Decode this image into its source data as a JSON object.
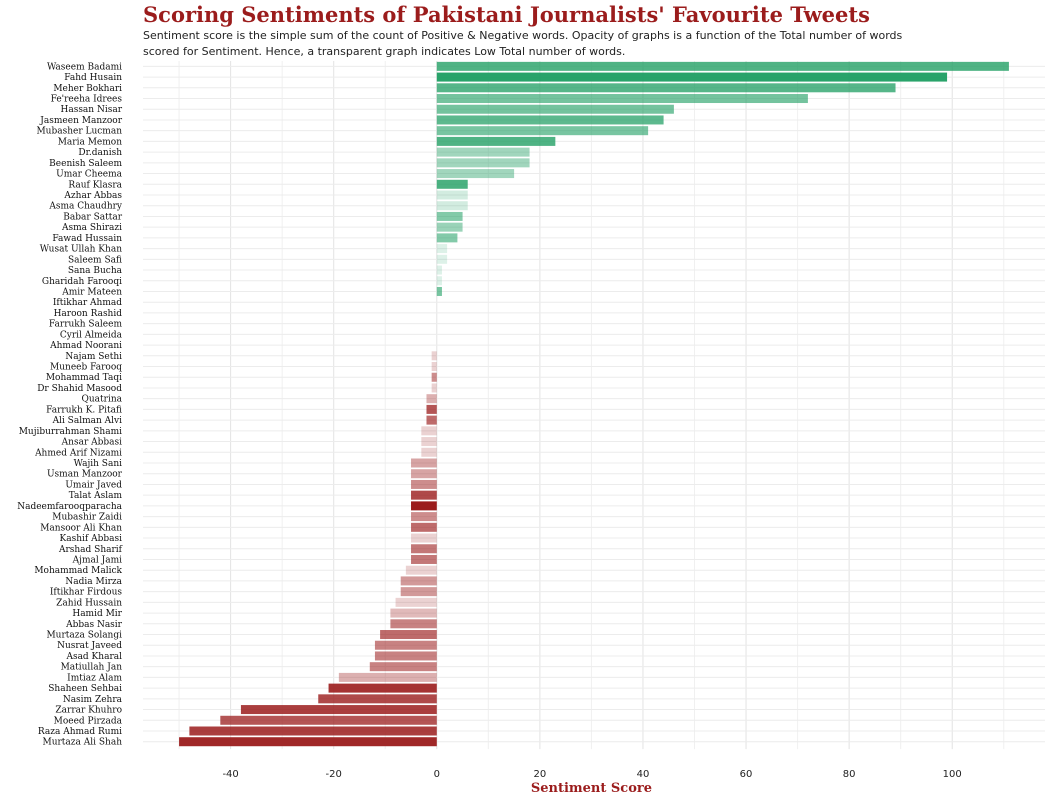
{
  "colors": {
    "positive": "#1e9e62",
    "negative": "#9b1c1c",
    "title": "#9b1c1c"
  },
  "chart_data": {
    "type": "bar",
    "orientation": "horizontal",
    "title": "Scoring Sentiments of Pakistani Journalists' Favourite Tweets",
    "subtitle": "Sentiment score is the simple sum of the count of Positive & Negative words. Opacity of graphs is a function of the Total number of words scored for Sentiment. Hence, a transparent graph indicates Low Total number of words.",
    "xlabel": "Sentiment Score",
    "ylabel": "",
    "xlim": [
      -57,
      118
    ],
    "xticks": [
      -40,
      -20,
      0,
      20,
      40,
      60,
      80,
      100
    ],
    "grid": true,
    "legend": "none",
    "categories": [
      "Waseem Badami",
      "Fahd Husain",
      "Meher Bokhari",
      "Fe'reeha  Idrees",
      "Hassan Nisar",
      "Jasmeen Manzoor",
      "Mubasher Lucman",
      "Maria Memon",
      "Dr.danish",
      "Beenish Saleem",
      "Umar Cheema",
      "Rauf Klasra",
      "Azhar Abbas",
      "Asma Chaudhry",
      "Babar Sattar",
      "Asma Shirazi",
      "Fawad Hussain",
      "Wusat Ullah Khan",
      "Saleem Safi",
      "Sana Bucha",
      "Gharidah Farooqi",
      "Amir Mateen",
      "Iftikhar Ahmad",
      "Haroon Rashid",
      "Farrukh Saleem",
      "Cyril Almeida",
      "Ahmad Noorani",
      "Najam Sethi",
      "Muneeb Farooq",
      "Mohammad Taqi",
      "Dr Shahid Masood",
      "Quatrina",
      "Farrukh K. Pitafi",
      "Ali Salman Alvi",
      "Mujiburrahman Shami",
      "Ansar Abbasi",
      "Ahmed Arif Nizami",
      "Wajih Sani",
      "Usman Manzoor",
      "Umair Javed",
      "Talat Aslam",
      "Nadeemfarooqparacha",
      "Mubashir Zaidi",
      "Mansoor Ali Khan",
      "Kashif Abbasi",
      "Arshad Sharif",
      "Ajmal Jami",
      "Mohammad Malick",
      "Nadia Mirza",
      "Iftikhar Firdous",
      "Zahid Hussain",
      "Hamid Mir",
      "Abbas Nasir",
      "Murtaza Solangi",
      "Nusrat Javeed",
      "Asad Kharal",
      "Matiullah Jan",
      "Imtiaz Alam",
      "Shaheen Sehbai",
      "Nasim Zehra",
      "Zarrar Khuhro",
      "Moeed Pirzada",
      "Raza Ahmad Rumi",
      "Murtaza Ali Shah"
    ],
    "values": [
      111,
      99,
      89,
      72,
      46,
      44,
      41,
      23,
      18,
      18,
      15,
      6,
      6,
      6,
      5,
      5,
      4,
      2,
      2,
      1,
      1,
      1,
      0,
      0,
      0,
      0,
      0,
      -1,
      -1,
      -1,
      -1,
      -2,
      -2,
      -2,
      -3,
      -3,
      -3,
      -5,
      -5,
      -5,
      -5,
      -5,
      -5,
      -5,
      -5,
      -5,
      -5,
      -6,
      -7,
      -7,
      -8,
      -9,
      -9,
      -11,
      -12,
      -12,
      -13,
      -19,
      -21,
      -23,
      -38,
      -42,
      -48,
      -50
    ],
    "opacity": [
      0.78,
      0.95,
      0.75,
      0.62,
      0.62,
      0.72,
      0.6,
      0.78,
      0.42,
      0.42,
      0.42,
      0.8,
      0.2,
      0.2,
      0.55,
      0.45,
      0.55,
      0.15,
      0.15,
      0.15,
      0.15,
      0.6,
      0,
      0,
      0,
      0,
      0,
      0.2,
      0.2,
      0.5,
      0.2,
      0.35,
      0.75,
      0.65,
      0.2,
      0.2,
      0.2,
      0.4,
      0.4,
      0.5,
      0.8,
      1.0,
      0.5,
      0.65,
      0.2,
      0.6,
      0.6,
      0.2,
      0.45,
      0.45,
      0.2,
      0.3,
      0.55,
      0.65,
      0.55,
      0.55,
      0.55,
      0.35,
      0.9,
      0.8,
      0.85,
      0.75,
      0.85,
      0.95
    ]
  }
}
